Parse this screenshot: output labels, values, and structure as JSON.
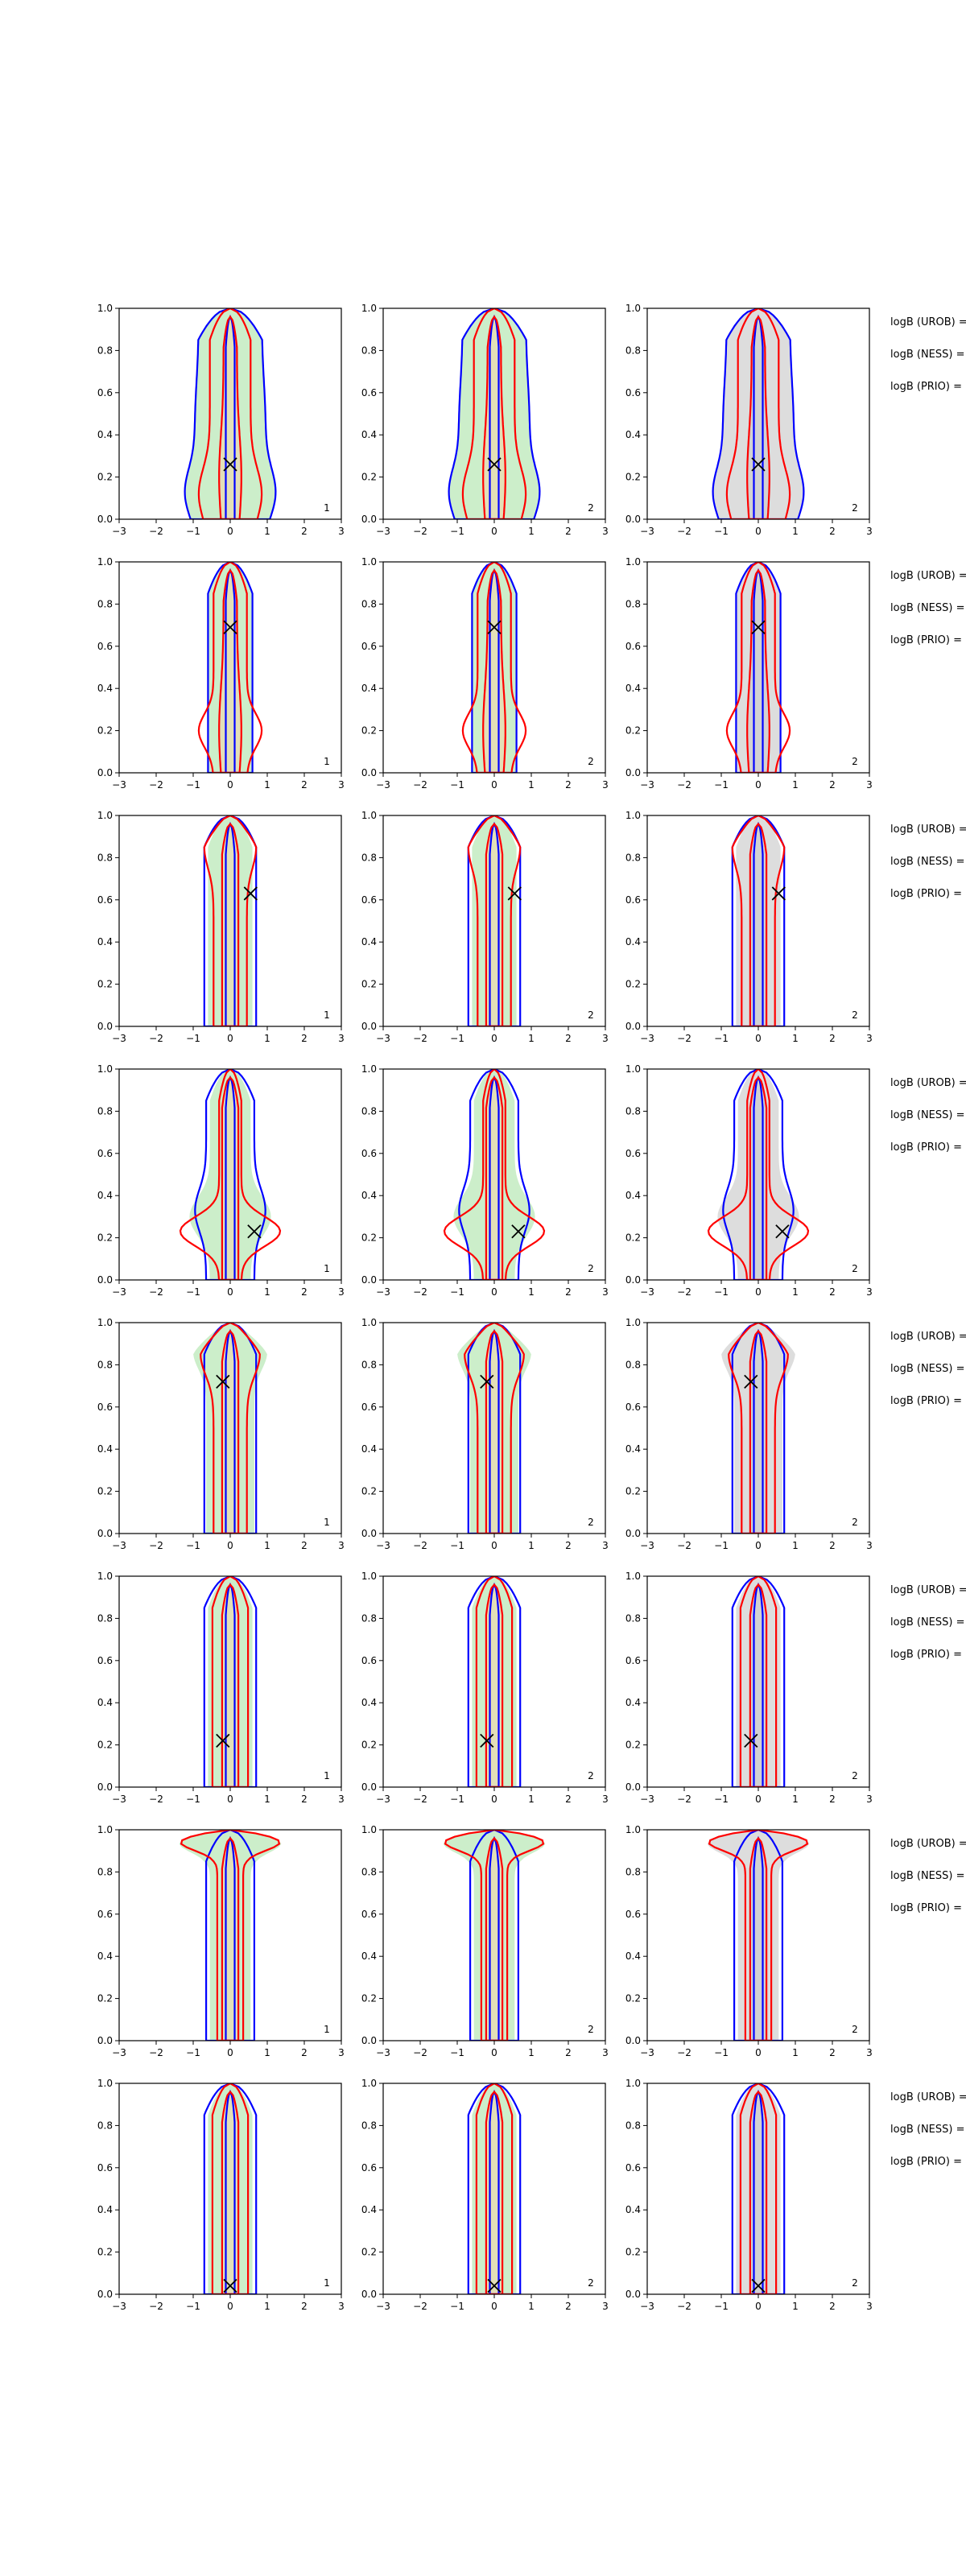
{
  "chart_data": {
    "type": "contour",
    "layout": {
      "rows": 8,
      "cols": 3
    },
    "xlim": [
      -3,
      3
    ],
    "ylim": [
      0,
      1
    ],
    "xticks": [
      "−3",
      "−2",
      "−1",
      "0",
      "1",
      "2",
      "3"
    ],
    "yticks": [
      "0.0",
      "0.2",
      "0.4",
      "0.6",
      "0.8",
      "1.0"
    ],
    "colors": {
      "green_fill": "#c7ecc4",
      "orange_fill": "#f5d3a8",
      "grey_fill": "#d9d9d9",
      "blue_line": "#0000ff",
      "red_line": "#ff0000"
    },
    "annotation_lines": [
      "logB (UROB) =",
      "logB (NESS) =",
      "logB (PRIO) ="
    ],
    "rows": [
      {
        "marker": [
          0.0,
          0.26
        ],
        "panel_numbers": [
          "1",
          "2",
          "2"
        ]
      },
      {
        "marker": [
          0.0,
          0.69
        ],
        "panel_numbers": [
          "1",
          "2",
          "2"
        ]
      },
      {
        "marker": [
          0.55,
          0.63
        ],
        "panel_numbers": [
          "1",
          "2",
          "2"
        ]
      },
      {
        "marker": [
          0.65,
          0.23
        ],
        "panel_numbers": [
          "1",
          "2",
          "2"
        ]
      },
      {
        "marker": [
          -0.2,
          0.72
        ],
        "panel_numbers": [
          "1",
          "2",
          "2"
        ]
      },
      {
        "marker": [
          -0.2,
          0.22
        ],
        "panel_numbers": [
          "1",
          "2",
          "2"
        ]
      },
      {
        "marker": null,
        "panel_numbers": [
          "1",
          "2",
          "2"
        ]
      },
      {
        "marker": [
          0.0,
          0.04
        ],
        "panel_numbers": [
          "1",
          "2",
          "2"
        ]
      }
    ]
  }
}
